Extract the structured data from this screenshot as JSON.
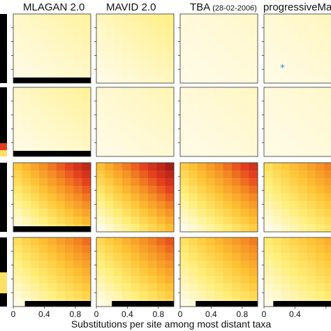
{
  "chart_data": {
    "type": "heatmap",
    "columns": [
      {
        "title": "MLAGAN 2.0",
        "subtitle": ""
      },
      {
        "title": "MAVID 2.0",
        "subtitle": ""
      },
      {
        "title": "TBA",
        "subtitle": "(28-02-2006)"
      },
      {
        "title": "progressiveMau",
        "subtitle": ""
      }
    ],
    "rows": 4,
    "xlabel": "Substitutions per site among most distant taxa",
    "xticks": [
      "0",
      "0.4",
      "0.8"
    ],
    "xlim": [
      0,
      1
    ],
    "color_scale": [
      "#fffbe6",
      "#ffee77",
      "#ffc436",
      "#f48a22",
      "#e2391f",
      "#a51d17"
    ],
    "intensity": [
      [
        0.1,
        0.14,
        0.04,
        0.06
      ],
      [
        0.11,
        0.07,
        0.05,
        0.04
      ],
      [
        0.75,
        0.82,
        0.7,
        0.55
      ],
      [
        0.55,
        0.6,
        0.52,
        0.42
      ]
    ],
    "bottom_black_bar": [
      [
        1.0,
        0.0,
        0.0,
        0.0
      ],
      [
        1.0,
        0.0,
        0.0,
        0.0
      ],
      [
        1.0,
        0.0,
        0.0,
        0.0
      ],
      [
        0.85,
        0.8,
        0.8,
        0.88
      ]
    ],
    "annotation_symbol": "*",
    "annotation_color": "#3b8fd6",
    "grid": false
  }
}
